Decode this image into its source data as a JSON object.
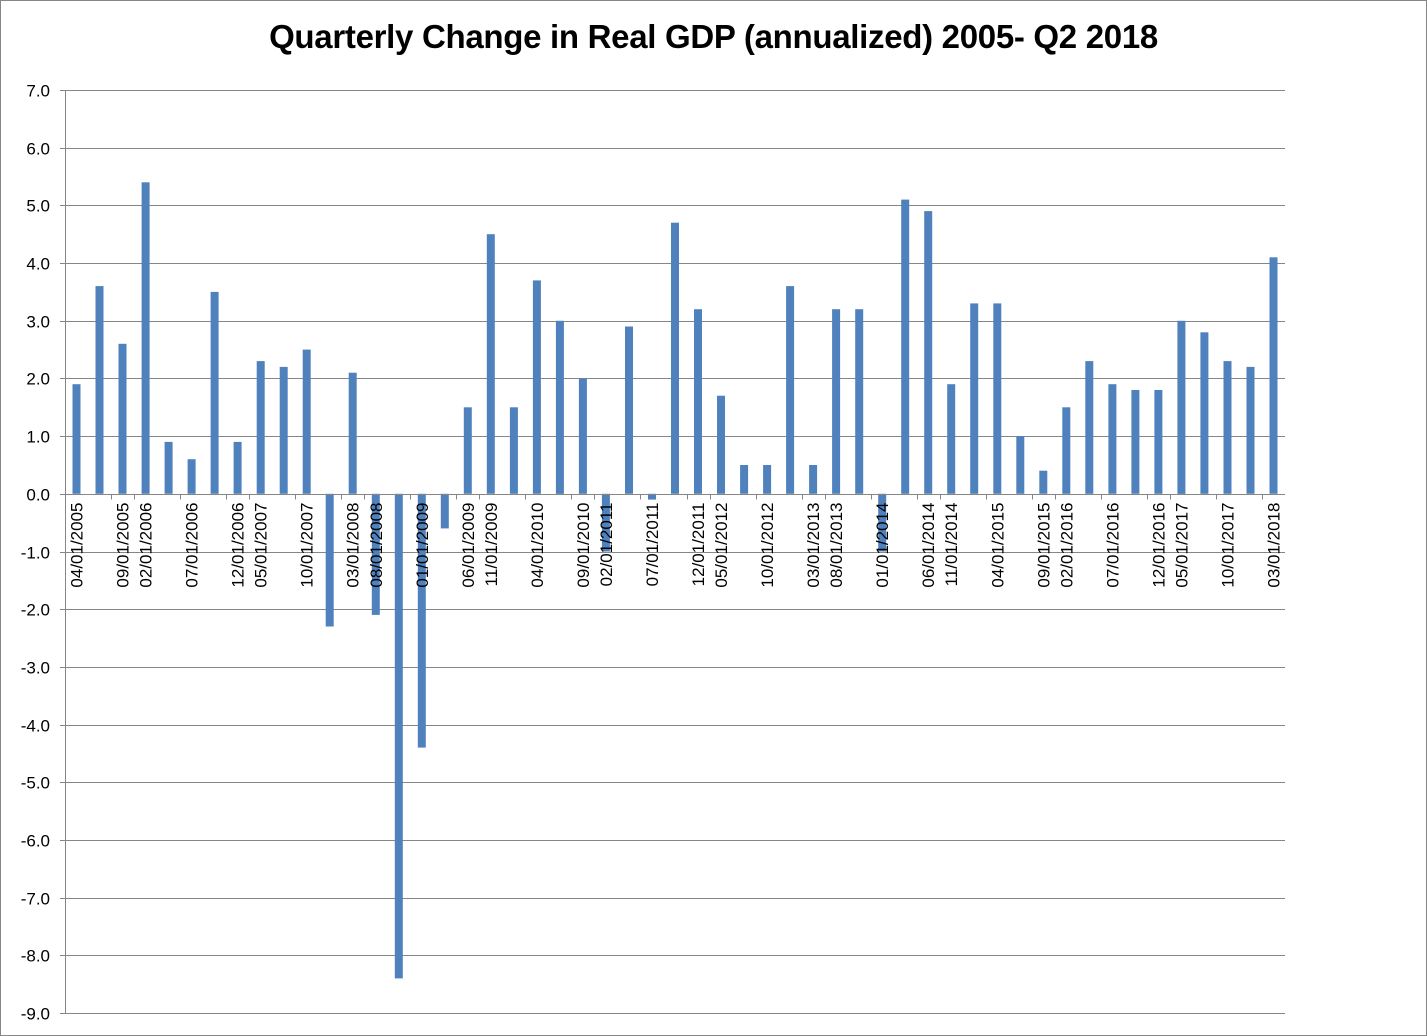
{
  "chart_data": {
    "type": "bar",
    "title": "Quarterly Change in Real GDP (annualized) 2005- Q2 2018",
    "xlabel": "",
    "ylabel": "",
    "ylim": [
      -9.0,
      7.0
    ],
    "y_ticks": [
      "7.0",
      "6.0",
      "5.0",
      "4.0",
      "3.0",
      "2.0",
      "1.0",
      "0.0",
      "-1.0",
      "-2.0",
      "-3.0",
      "-4.0",
      "-5.0",
      "-6.0",
      "-7.0",
      "-8.0",
      "-9.0"
    ],
    "y_tick_values": [
      7,
      6,
      5,
      4,
      3,
      2,
      1,
      0,
      -1,
      -2,
      -3,
      -4,
      -5,
      -6,
      -7,
      -8,
      -9
    ],
    "grid": true,
    "legend": "none",
    "bar_color": "#4F81BD",
    "grid_color": "#868686",
    "x_tick_labels": [
      {
        "label": "04/01/2005",
        "index": 0
      },
      {
        "label": "09/01/2005",
        "index": 2
      },
      {
        "label": "02/01/2006",
        "index": 3
      },
      {
        "label": "07/01/2006",
        "index": 5
      },
      {
        "label": "12/01/2006",
        "index": 7
      },
      {
        "label": "05/01/2007",
        "index": 8
      },
      {
        "label": "10/01/2007",
        "index": 10
      },
      {
        "label": "03/01/2008",
        "index": 12
      },
      {
        "label": "08/01/2008",
        "index": 13
      },
      {
        "label": "01/01/2009",
        "index": 15
      },
      {
        "label": "06/01/2009",
        "index": 17
      },
      {
        "label": "11/01/2009",
        "index": 18
      },
      {
        "label": "04/01/2010",
        "index": 20
      },
      {
        "label": "09/01/2010",
        "index": 22
      },
      {
        "label": "02/01/2011",
        "index": 23
      },
      {
        "label": "07/01/2011",
        "index": 25
      },
      {
        "label": "12/01/2011",
        "index": 27
      },
      {
        "label": "05/01/2012",
        "index": 28
      },
      {
        "label": "10/01/2012",
        "index": 30
      },
      {
        "label": "03/01/2013",
        "index": 32
      },
      {
        "label": "08/01/2013",
        "index": 33
      },
      {
        "label": "01/01/2014",
        "index": 35
      },
      {
        "label": "06/01/2014",
        "index": 37
      },
      {
        "label": "11/01/2014",
        "index": 38
      },
      {
        "label": "04/01/2015",
        "index": 40
      },
      {
        "label": "09/01/2015",
        "index": 42
      },
      {
        "label": "02/01/2016",
        "index": 43
      },
      {
        "label": "07/01/2016",
        "index": 45
      },
      {
        "label": "12/01/2016",
        "index": 47
      },
      {
        "label": "05/01/2017",
        "index": 48
      },
      {
        "label": "10/01/2017",
        "index": 50
      },
      {
        "label": "03/01/2018",
        "index": 52
      }
    ],
    "series": [
      {
        "values": [
          1.9,
          3.6,
          2.6,
          5.4,
          0.9,
          0.6,
          3.5,
          0.9,
          2.3,
          2.2,
          2.5,
          -2.3,
          2.1,
          -2.1,
          -8.4,
          -4.4,
          -0.6,
          1.5,
          4.5,
          1.5,
          3.7,
          3.0,
          2.0,
          -1.0,
          2.9,
          -0.1,
          4.7,
          3.2,
          1.7,
          0.5,
          0.5,
          3.6,
          0.5,
          3.2,
          3.2,
          -1.0,
          5.1,
          4.9,
          1.9,
          3.3,
          3.3,
          1.0,
          0.4,
          1.5,
          2.3,
          1.9,
          1.8,
          1.8,
          3.0,
          2.8,
          2.3,
          2.2,
          4.1
        ]
      }
    ]
  }
}
